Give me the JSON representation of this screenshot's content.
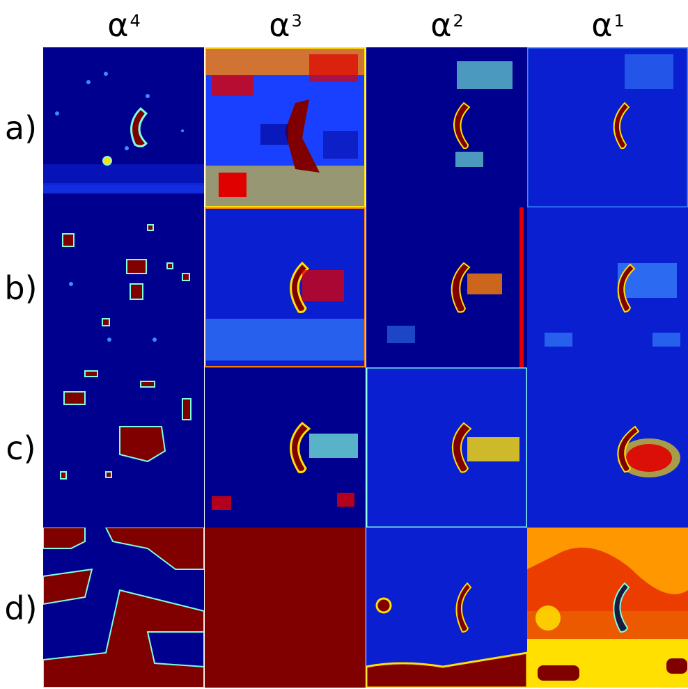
{
  "figure": {
    "columns": [
      {
        "symbol": "α",
        "exponent": "4"
      },
      {
        "symbol": "α",
        "exponent": "3"
      },
      {
        "symbol": "α",
        "exponent": "2"
      },
      {
        "symbol": "α",
        "exponent": "1"
      }
    ],
    "rows": [
      "a)",
      "b)",
      "c)",
      "d)"
    ]
  },
  "colors": {
    "deep_blue": "#00008f",
    "blue": "#0a1fd0",
    "light_blue": "#3a8cff",
    "cyan": "#7fffe0",
    "yellow": "#ffe000",
    "orange": "#ff8000",
    "red": "#e00000",
    "dark_red": "#800000"
  }
}
